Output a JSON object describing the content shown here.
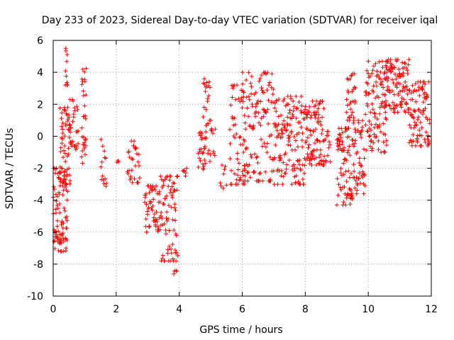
{
  "chart_data": {
    "type": "scatter",
    "title": "Day 233 of 2023, Sidereal Day-to-day VTEC variation (SDTVAR) for receiver iqal",
    "xlabel": "GPS time / hours",
    "ylabel": "SDTVAR / TECUs",
    "xlim": [
      0,
      12
    ],
    "ylim": [
      -10,
      6
    ],
    "xticks": [
      0,
      2,
      4,
      6,
      8,
      10,
      12
    ],
    "yticks": [
      -10,
      -8,
      -6,
      -4,
      -2,
      0,
      2,
      4,
      6
    ],
    "grid": true,
    "marker": "+",
    "color": "#ff0000",
    "clusters": [
      {
        "x0": 0.0,
        "x1": 0.45,
        "ylo": -7.2,
        "yhi": -2.0,
        "n": 90
      },
      {
        "x0": 0.2,
        "x1": 0.55,
        "ylo": -3.5,
        "yhi": 1.8,
        "n": 60
      },
      {
        "x0": 0.38,
        "x1": 0.46,
        "ylo": 3.2,
        "yhi": 5.5,
        "n": 10
      },
      {
        "x0": 0.5,
        "x1": 0.8,
        "ylo": -1.0,
        "yhi": 2.3,
        "n": 30
      },
      {
        "x0": 0.9,
        "x1": 1.05,
        "ylo": -1.7,
        "yhi": 4.5,
        "n": 30
      },
      {
        "x0": 1.5,
        "x1": 1.7,
        "ylo": -3.4,
        "yhi": -0.2,
        "n": 14
      },
      {
        "x0": 2.0,
        "x1": 2.1,
        "ylo": -1.7,
        "yhi": -1.5,
        "n": 3
      },
      {
        "x0": 2.35,
        "x1": 2.75,
        "ylo": -2.9,
        "yhi": -0.2,
        "n": 30
      },
      {
        "x0": 2.9,
        "x1": 3.4,
        "ylo": -6.0,
        "yhi": -3.1,
        "n": 55
      },
      {
        "x0": 3.4,
        "x1": 3.95,
        "ylo": -7.8,
        "yhi": -2.5,
        "n": 70
      },
      {
        "x0": 3.8,
        "x1": 3.95,
        "ylo": -8.7,
        "yhi": -7.0,
        "n": 8
      },
      {
        "x0": 4.1,
        "x1": 4.25,
        "ylo": -2.7,
        "yhi": -2.0,
        "n": 6
      },
      {
        "x0": 4.6,
        "x1": 4.85,
        "ylo": -2.2,
        "yhi": 0.5,
        "n": 25
      },
      {
        "x0": 4.75,
        "x1": 5.0,
        "ylo": 1.0,
        "yhi": 3.6,
        "n": 18
      },
      {
        "x0": 4.8,
        "x1": 5.15,
        "ylo": -1.6,
        "yhi": 0.8,
        "n": 18
      },
      {
        "x0": 5.3,
        "x1": 5.5,
        "ylo": -3.3,
        "yhi": -1.8,
        "n": 8
      },
      {
        "x0": 5.6,
        "x1": 6.1,
        "ylo": -3.0,
        "yhi": 3.2,
        "n": 55
      },
      {
        "x0": 6.0,
        "x1": 7.0,
        "ylo": -2.8,
        "yhi": 4.0,
        "n": 120
      },
      {
        "x0": 7.0,
        "x1": 8.0,
        "ylo": -3.0,
        "yhi": 2.5,
        "n": 140
      },
      {
        "x0": 8.0,
        "x1": 8.6,
        "ylo": -1.8,
        "yhi": 2.2,
        "n": 90
      },
      {
        "x0": 8.6,
        "x1": 8.8,
        "ylo": -1.6,
        "yhi": 0.3,
        "n": 14
      },
      {
        "x0": 9.0,
        "x1": 9.5,
        "ylo": -4.3,
        "yhi": 0.5,
        "n": 80
      },
      {
        "x0": 9.3,
        "x1": 9.6,
        "ylo": 1.0,
        "yhi": 4.0,
        "n": 30
      },
      {
        "x0": 9.5,
        "x1": 9.9,
        "ylo": -3.6,
        "yhi": 1.0,
        "n": 50
      },
      {
        "x0": 9.9,
        "x1": 10.6,
        "ylo": -1.0,
        "yhi": 4.7,
        "n": 100
      },
      {
        "x0": 10.5,
        "x1": 11.3,
        "ylo": 1.5,
        "yhi": 4.8,
        "n": 110
      },
      {
        "x0": 11.3,
        "x1": 11.95,
        "ylo": -0.6,
        "yhi": 3.4,
        "n": 90
      }
    ]
  }
}
